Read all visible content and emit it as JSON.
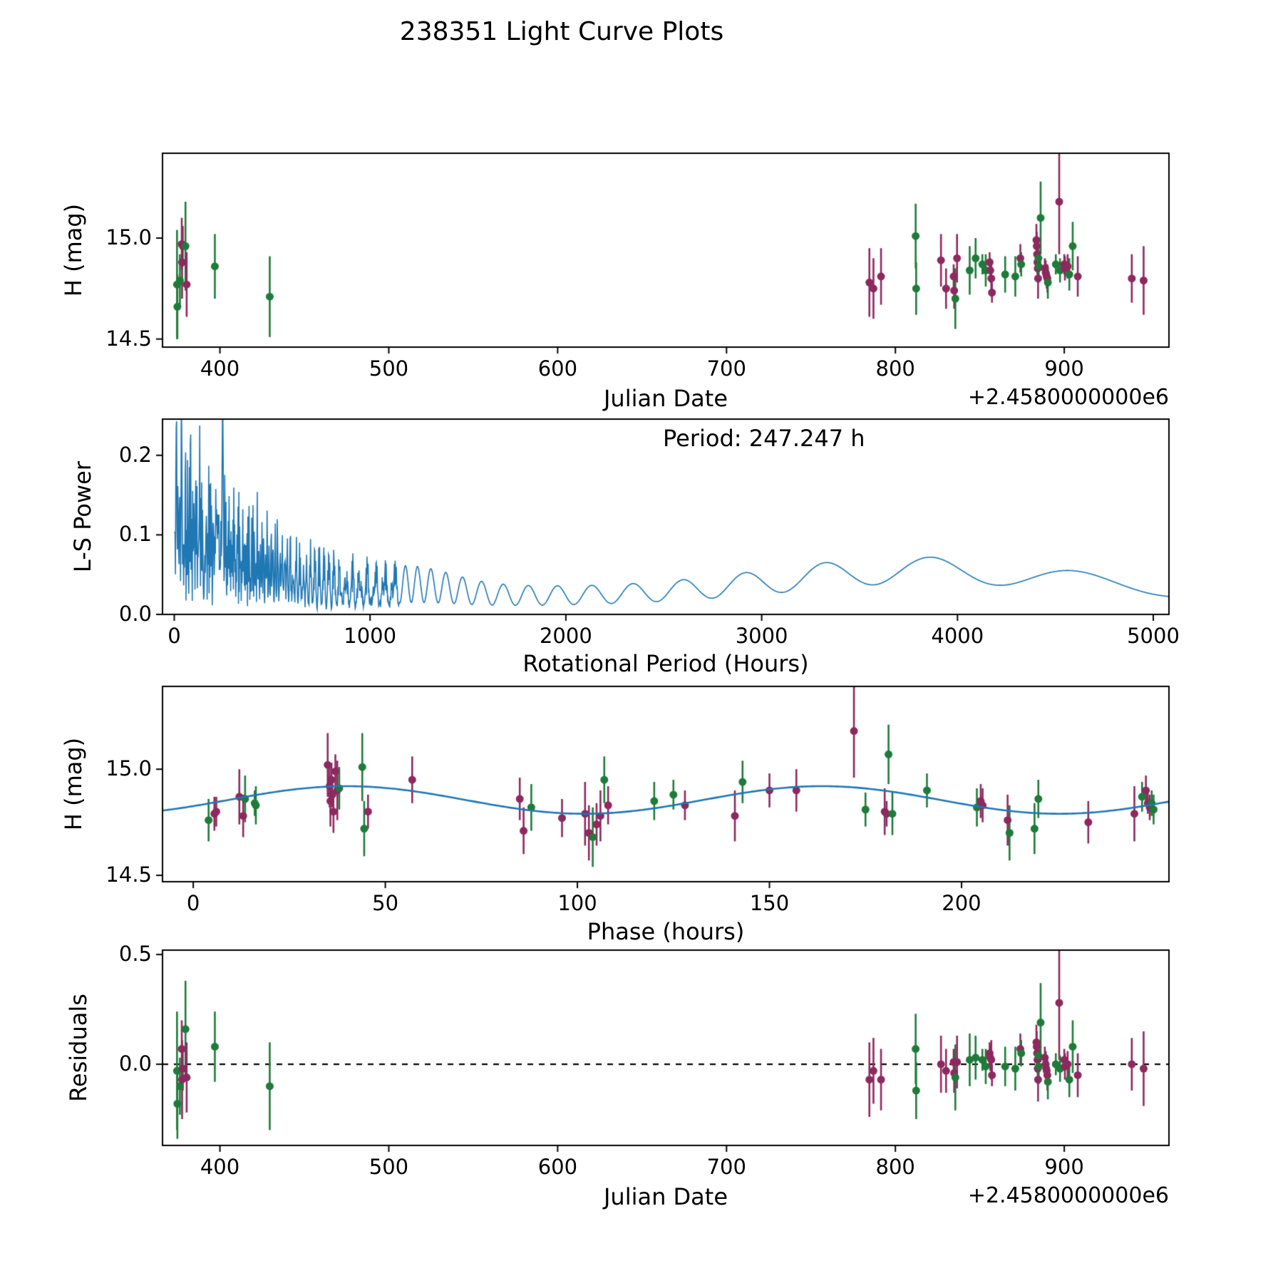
{
  "title": "238351 Light Curve Plots",
  "colors": {
    "green_marker": "#1e7b39",
    "purple_marker": "#8d295f",
    "fit_line_blue": "#1f77b4",
    "axis_black": "#000000",
    "background": "#ffffff"
  },
  "chart_data": [
    {
      "id": "jd_lightcurve",
      "type": "scatter",
      "xlabel": "Julian Date",
      "ylabel": "H (mag)",
      "x_offset_text": "+2.4580000000e6",
      "xlim": [
        366,
        962
      ],
      "ylim": [
        14.46,
        15.42
      ],
      "xticks": [
        "400",
        "500",
        "600",
        "700",
        "800",
        "900"
      ],
      "yticks": [
        "14.5",
        "15.0"
      ],
      "points": [
        [
          374.6,
          14.77,
          0.27,
          "g"
        ],
        [
          374.8,
          14.66,
          0.16,
          "g"
        ],
        [
          376.3,
          14.79,
          0.13,
          "g"
        ],
        [
          377.4,
          14.97,
          0.13,
          "p"
        ],
        [
          377.6,
          14.88,
          0.18,
          "p"
        ],
        [
          378.0,
          14.96,
          0.1,
          "p"
        ],
        [
          379.6,
          14.96,
          0.22,
          "g"
        ],
        [
          380.3,
          14.77,
          0.16,
          "p"
        ],
        [
          397.0,
          14.86,
          0.16,
          "g"
        ],
        [
          429.5,
          14.71,
          0.2,
          "g"
        ],
        [
          784.6,
          14.78,
          0.17,
          "p"
        ],
        [
          787.0,
          14.75,
          0.15,
          "p"
        ],
        [
          791.5,
          14.81,
          0.14,
          "p"
        ],
        [
          812.0,
          15.01,
          0.16,
          "g"
        ],
        [
          812.3,
          14.75,
          0.13,
          "g"
        ],
        [
          827.0,
          14.89,
          0.13,
          "p"
        ],
        [
          830.0,
          14.75,
          0.1,
          "p"
        ],
        [
          834.5,
          14.81,
          0.06,
          "p"
        ],
        [
          834.8,
          14.74,
          0.09,
          "p"
        ],
        [
          835.5,
          14.7,
          0.15,
          "g"
        ],
        [
          836.5,
          14.9,
          0.12,
          "p"
        ],
        [
          844.0,
          14.84,
          0.12,
          "g"
        ],
        [
          847.5,
          14.9,
          0.1,
          "g"
        ],
        [
          851.5,
          14.87,
          0.05,
          "g"
        ],
        [
          853.5,
          14.84,
          0.08,
          "g"
        ],
        [
          855.8,
          14.88,
          0.05,
          "p"
        ],
        [
          856.2,
          14.84,
          0.06,
          "p"
        ],
        [
          856.8,
          14.8,
          0.09,
          "p"
        ],
        [
          857.2,
          14.73,
          0.05,
          "p"
        ],
        [
          865.0,
          14.82,
          0.09,
          "g"
        ],
        [
          871.0,
          14.81,
          0.1,
          "g"
        ],
        [
          874.0,
          14.9,
          0.07,
          "p"
        ],
        [
          874.5,
          14.87,
          0.06,
          "g"
        ],
        [
          883.5,
          14.99,
          0.08,
          "p"
        ],
        [
          883.7,
          14.96,
          0.07,
          "p"
        ],
        [
          883.9,
          14.92,
          0.06,
          "p"
        ],
        [
          884.1,
          14.88,
          0.06,
          "p"
        ],
        [
          884.3,
          14.85,
          0.07,
          "p"
        ],
        [
          884.5,
          14.8,
          0.1,
          "p"
        ],
        [
          884.7,
          14.9,
          0.06,
          "g"
        ],
        [
          884.9,
          14.86,
          0.08,
          "g"
        ],
        [
          886.0,
          15.1,
          0.18,
          "g"
        ],
        [
          888.5,
          14.85,
          0.05,
          "p"
        ],
        [
          889.0,
          14.83,
          0.06,
          "p"
        ],
        [
          889.3,
          14.82,
          0.05,
          "p"
        ],
        [
          889.6,
          14.81,
          0.06,
          "p"
        ],
        [
          890.0,
          14.8,
          0.07,
          "p"
        ],
        [
          890.3,
          14.78,
          0.08,
          "g"
        ],
        [
          895.0,
          14.87,
          0.05,
          "g"
        ],
        [
          897.0,
          15.18,
          0.26,
          "p"
        ],
        [
          897.5,
          14.84,
          0.06,
          "g"
        ],
        [
          900.0,
          14.87,
          0.05,
          "p"
        ],
        [
          900.4,
          14.85,
          0.06,
          "p"
        ],
        [
          902.0,
          14.86,
          0.06,
          "p"
        ],
        [
          903.0,
          14.82,
          0.08,
          "g"
        ],
        [
          905.0,
          14.96,
          0.12,
          "g"
        ],
        [
          908.0,
          14.81,
          0.1,
          "p"
        ],
        [
          940.0,
          14.8,
          0.12,
          "p"
        ],
        [
          947.0,
          14.79,
          0.17,
          "p"
        ]
      ]
    },
    {
      "id": "periodogram",
      "type": "line",
      "xlabel": "Rotational Period (Hours)",
      "ylabel": "L-S Power",
      "annotation": "Period: 247.247 h",
      "best_period_hours": 247.247,
      "peak_power": 0.245,
      "xlim": [
        -60,
        5080
      ],
      "ylim": [
        0,
        0.2455
      ],
      "xticks": [
        "0",
        "1000",
        "2000",
        "3000",
        "4000",
        "5000"
      ],
      "yticks": [
        "0.0",
        "0.1",
        "0.2"
      ],
      "smooth_peaks_readout": [
        [
          2900,
          0.05
        ],
        [
          3350,
          0.068
        ],
        [
          3870,
          0.072
        ],
        [
          4600,
          0.048
        ]
      ],
      "synthesis": {
        "baseline_hours": 23800,
        "k_phase": 0.16,
        "env_base": 0.03,
        "env_amp": 0.2,
        "env_decay": 480,
        "hump_center": 3800,
        "hump_width": 1100,
        "hump_amp": 0.042,
        "bump1250_amp": 0.015,
        "bump1250_width": 260,
        "spike_sigma": 5,
        "spike_amp": 0.26,
        "sample_step": 2
      }
    },
    {
      "id": "phase_curve",
      "type": "scatter_with_fit",
      "xlabel": "Phase (hours)",
      "ylabel": "H (mag)",
      "xlim": [
        -8,
        254
      ],
      "ylim": [
        14.47,
        15.39
      ],
      "xticks": [
        "0",
        "50",
        "100",
        "150",
        "200"
      ],
      "yticks": [
        "14.5",
        "15.0"
      ],
      "fit": {
        "mean": 14.855,
        "amplitude": 0.065,
        "period_hours": 247.247,
        "n_cycles": 2,
        "peak_phase_hours": 40
      },
      "points": [
        [
          4,
          14.76,
          0.1,
          "g"
        ],
        [
          5.5,
          14.79,
          0.08,
          "p"
        ],
        [
          6,
          14.8,
          0.07,
          "p"
        ],
        [
          12,
          14.87,
          0.13,
          "p"
        ],
        [
          13,
          14.78,
          0.1,
          "p"
        ],
        [
          13.5,
          14.86,
          0.11,
          "g"
        ],
        [
          16,
          14.84,
          0.06,
          "g"
        ],
        [
          16.3,
          14.83,
          0.09,
          "g"
        ],
        [
          35,
          15.02,
          0.15,
          "p"
        ],
        [
          35.5,
          14.92,
          0.1,
          "p"
        ],
        [
          35.7,
          14.85,
          0.12,
          "p"
        ],
        [
          36,
          14.95,
          0.08,
          "p"
        ],
        [
          36.2,
          14.88,
          0.06,
          "p"
        ],
        [
          36.5,
          14.8,
          0.1,
          "p"
        ],
        [
          37,
          14.99,
          0.08,
          "p"
        ],
        [
          37.5,
          14.9,
          0.14,
          "p"
        ],
        [
          38,
          14.91,
          0.1,
          "g"
        ],
        [
          44,
          15.01,
          0.16,
          "g"
        ],
        [
          44.5,
          14.72,
          0.13,
          "g"
        ],
        [
          45.5,
          14.8,
          0.08,
          "p"
        ],
        [
          57,
          14.95,
          0.11,
          "p"
        ],
        [
          85,
          14.86,
          0.1,
          "p"
        ],
        [
          86,
          14.71,
          0.11,
          "p"
        ],
        [
          88,
          14.82,
          0.11,
          "g"
        ],
        [
          96,
          14.77,
          0.09,
          "p"
        ],
        [
          102,
          14.79,
          0.15,
          "p"
        ],
        [
          103,
          14.7,
          0.13,
          "p"
        ],
        [
          104,
          14.68,
          0.14,
          "g"
        ],
        [
          105,
          14.74,
          0.1,
          "p"
        ],
        [
          106,
          14.78,
          0.12,
          "p"
        ],
        [
          107,
          14.95,
          0.11,
          "g"
        ],
        [
          108,
          14.83,
          0.09,
          "p"
        ],
        [
          120,
          14.85,
          0.09,
          "g"
        ],
        [
          125,
          14.88,
          0.07,
          "g"
        ],
        [
          128,
          14.83,
          0.07,
          "p"
        ],
        [
          141,
          14.78,
          0.12,
          "p"
        ],
        [
          143,
          14.94,
          0.1,
          "g"
        ],
        [
          150,
          14.9,
          0.08,
          "p"
        ],
        [
          157,
          14.9,
          0.1,
          "p"
        ],
        [
          172,
          15.18,
          0.22,
          "p"
        ],
        [
          175,
          14.81,
          0.08,
          "g"
        ],
        [
          180,
          14.8,
          0.11,
          "p"
        ],
        [
          180.5,
          14.79,
          0.06,
          "p"
        ],
        [
          181,
          15.07,
          0.14,
          "g"
        ],
        [
          182,
          14.79,
          0.1,
          "g"
        ],
        [
          191,
          14.9,
          0.08,
          "g"
        ],
        [
          204,
          14.82,
          0.09,
          "g"
        ],
        [
          205,
          14.85,
          0.08,
          "p"
        ],
        [
          205.5,
          14.83,
          0.08,
          "p"
        ],
        [
          212,
          14.76,
          0.12,
          "p"
        ],
        [
          212.5,
          14.7,
          0.13,
          "g"
        ],
        [
          219,
          14.72,
          0.12,
          "g"
        ],
        [
          220,
          14.86,
          0.09,
          "g"
        ],
        [
          233,
          14.75,
          0.1,
          "p"
        ],
        [
          245,
          14.79,
          0.13,
          "p"
        ],
        [
          247,
          14.87,
          0.07,
          "g"
        ],
        [
          248,
          14.9,
          0.07,
          "p"
        ],
        [
          248.5,
          14.84,
          0.05,
          "p"
        ],
        [
          249,
          14.82,
          0.06,
          "p"
        ],
        [
          249.5,
          14.84,
          0.06,
          "g"
        ],
        [
          250,
          14.81,
          0.07,
          "g"
        ]
      ]
    },
    {
      "id": "residuals",
      "type": "scatter",
      "xlabel": "Julian Date",
      "ylabel": "Residuals",
      "x_offset_text": "+2.4580000000e6",
      "xlim": [
        366,
        962
      ],
      "ylim": [
        -0.37,
        0.52
      ],
      "xticks": [
        "400",
        "500",
        "600",
        "700",
        "800",
        "900"
      ],
      "yticks": [
        "0.0",
        "0.5"
      ],
      "zero_line": true,
      "points": [
        [
          374.6,
          -0.03,
          0.27,
          "g"
        ],
        [
          374.8,
          -0.18,
          0.16,
          "g"
        ],
        [
          376.3,
          -0.1,
          0.13,
          "g"
        ],
        [
          377.4,
          0.07,
          0.13,
          "p"
        ],
        [
          377.6,
          -0.07,
          0.18,
          "p"
        ],
        [
          378.0,
          -0.02,
          0.1,
          "p"
        ],
        [
          379.6,
          0.16,
          0.22,
          "g"
        ],
        [
          380.3,
          -0.06,
          0.16,
          "p"
        ],
        [
          397.0,
          0.08,
          0.16,
          "g"
        ],
        [
          429.5,
          -0.1,
          0.2,
          "g"
        ],
        [
          784.6,
          -0.07,
          0.17,
          "p"
        ],
        [
          787.0,
          -0.03,
          0.15,
          "p"
        ],
        [
          791.5,
          -0.07,
          0.14,
          "p"
        ],
        [
          812.0,
          0.07,
          0.16,
          "g"
        ],
        [
          812.3,
          -0.12,
          0.13,
          "g"
        ],
        [
          827.0,
          0.0,
          0.13,
          "p"
        ],
        [
          830.0,
          -0.03,
          0.1,
          "p"
        ],
        [
          834.5,
          0.01,
          0.06,
          "p"
        ],
        [
          834.8,
          -0.04,
          0.09,
          "p"
        ],
        [
          835.5,
          -0.06,
          0.15,
          "g"
        ],
        [
          836.5,
          0.01,
          0.12,
          "p"
        ],
        [
          844.0,
          0.02,
          0.12,
          "g"
        ],
        [
          847.5,
          0.03,
          0.1,
          "g"
        ],
        [
          851.5,
          0.02,
          0.05,
          "g"
        ],
        [
          853.5,
          -0.01,
          0.08,
          "g"
        ],
        [
          855.8,
          0.05,
          0.05,
          "p"
        ],
        [
          856.2,
          0.03,
          0.06,
          "p"
        ],
        [
          856.8,
          0.02,
          0.09,
          "p"
        ],
        [
          857.2,
          -0.05,
          0.05,
          "p"
        ],
        [
          865.0,
          -0.01,
          0.09,
          "g"
        ],
        [
          871.0,
          -0.02,
          0.1,
          "g"
        ],
        [
          874.0,
          0.07,
          0.07,
          "p"
        ],
        [
          874.5,
          0.05,
          0.06,
          "g"
        ],
        [
          883.5,
          0.1,
          0.08,
          "p"
        ],
        [
          883.7,
          0.08,
          0.07,
          "p"
        ],
        [
          883.9,
          0.05,
          0.06,
          "p"
        ],
        [
          884.1,
          0.02,
          0.06,
          "p"
        ],
        [
          884.3,
          -0.02,
          0.07,
          "p"
        ],
        [
          884.5,
          -0.07,
          0.1,
          "p"
        ],
        [
          884.7,
          0.04,
          0.06,
          "g"
        ],
        [
          884.9,
          -0.01,
          0.08,
          "g"
        ],
        [
          886.0,
          0.19,
          0.18,
          "g"
        ],
        [
          888.5,
          0.03,
          0.05,
          "p"
        ],
        [
          889.0,
          0.0,
          0.06,
          "p"
        ],
        [
          889.3,
          -0.02,
          0.05,
          "p"
        ],
        [
          889.6,
          -0.03,
          0.06,
          "p"
        ],
        [
          890.0,
          -0.05,
          0.07,
          "p"
        ],
        [
          890.3,
          -0.08,
          0.08,
          "g"
        ],
        [
          895.0,
          0.0,
          0.05,
          "g"
        ],
        [
          897.0,
          0.28,
          0.26,
          "p"
        ],
        [
          897.5,
          -0.02,
          0.06,
          "g"
        ],
        [
          900.0,
          0.02,
          0.05,
          "p"
        ],
        [
          900.4,
          -0.01,
          0.06,
          "p"
        ],
        [
          902.0,
          0.0,
          0.06,
          "p"
        ],
        [
          903.0,
          -0.07,
          0.08,
          "g"
        ],
        [
          905.0,
          0.08,
          0.12,
          "g"
        ],
        [
          908.0,
          -0.05,
          0.1,
          "p"
        ],
        [
          940.0,
          0.0,
          0.12,
          "p"
        ],
        [
          947.0,
          -0.02,
          0.17,
          "p"
        ]
      ]
    }
  ]
}
